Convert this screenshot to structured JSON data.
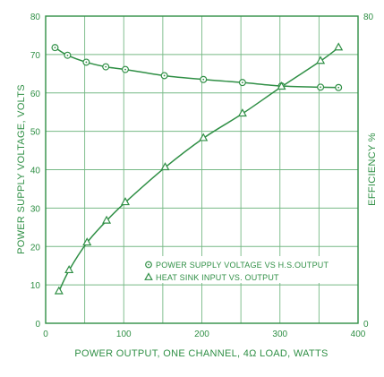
{
  "colors": {
    "ink": "#2f8f45",
    "grid": "#76b985",
    "background": "#ffffff"
  },
  "chart_data": {
    "type": "line",
    "title": "",
    "xlabel": "POWER OUTPUT, ONE CHANNEL, 4Ω LOAD, WATTS",
    "ylabel": "POWER SUPPLY VOLTAGE, VOLTS",
    "y2label": "EFFICIENCY %",
    "xlim": [
      0,
      400
    ],
    "ylim": [
      0,
      80
    ],
    "y2lim": [
      0,
      80
    ],
    "x_ticks": [
      "0",
      "100",
      "200",
      "300",
      "400"
    ],
    "y_ticks": [
      "0",
      "10",
      "20",
      "30",
      "40",
      "50",
      "60",
      "70",
      "80"
    ],
    "y2_ticks": [
      "0",
      "80"
    ],
    "grid": true,
    "grid_x_step": 50,
    "grid_y_step": 10,
    "legend_position": "lower-right",
    "series": [
      {
        "name": "POWER SUPPLY VOLTAGE VS H.S.OUTPUT",
        "marker": "circle",
        "axis": "left",
        "x": [
          12,
          28,
          52,
          77,
          102,
          152,
          202,
          252,
          302,
          352,
          375
        ],
        "y": [
          71.8,
          69.8,
          68,
          66.8,
          66.1,
          64.5,
          63.5,
          62.7,
          61.8,
          61.5,
          61.4
        ]
      },
      {
        "name": "HEAT SINK INPUT VS. OUTPUT",
        "marker": "triangle",
        "axis": "right",
        "x": [
          17,
          30,
          53,
          78,
          102,
          153,
          202,
          252,
          302,
          352,
          375
        ],
        "y": [
          8.3,
          13.8,
          21,
          26.7,
          31.5,
          40.6,
          48.2,
          54.6,
          61.6,
          68.3,
          71.8
        ]
      }
    ]
  }
}
